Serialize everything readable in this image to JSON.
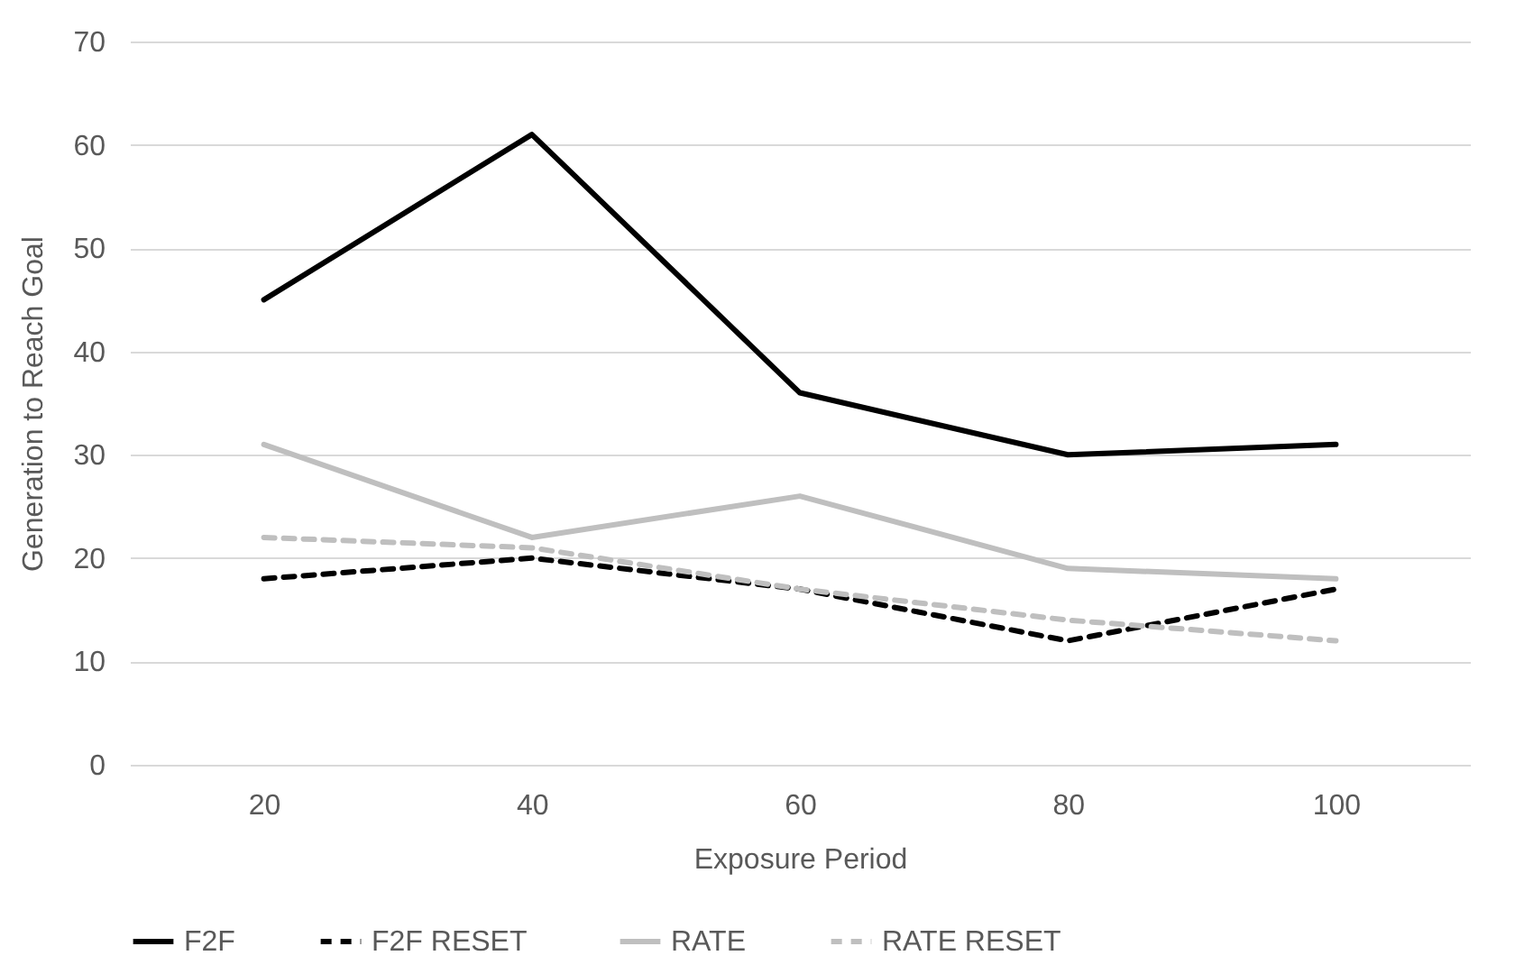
{
  "chart_data": {
    "type": "line",
    "xlabel": "Exposure Period",
    "ylabel": "Generation to Reach Goal",
    "categories": [
      "20",
      "40",
      "60",
      "80",
      "100"
    ],
    "series": [
      {
        "name": "F2F",
        "color": "#000000",
        "line_style": "solid",
        "values": [
          45,
          61,
          36,
          30,
          31
        ]
      },
      {
        "name": "F2F  RESET",
        "color": "#000000",
        "line_style": "dashed",
        "values": [
          18,
          20,
          17,
          12,
          17
        ]
      },
      {
        "name": "RATE",
        "color": "#bfbfbf",
        "line_style": "solid",
        "values": [
          31,
          22,
          26,
          19,
          18
        ]
      },
      {
        "name": "RATE  RESET",
        "color": "#bfbfbf",
        "line_style": "dashed",
        "values": [
          22,
          21,
          17,
          14,
          12
        ]
      }
    ],
    "ylim": [
      0,
      70
    ],
    "yticks": [
      0,
      10,
      20,
      30,
      40,
      50,
      60,
      70
    ],
    "grid": "y",
    "legend": "bottom"
  }
}
